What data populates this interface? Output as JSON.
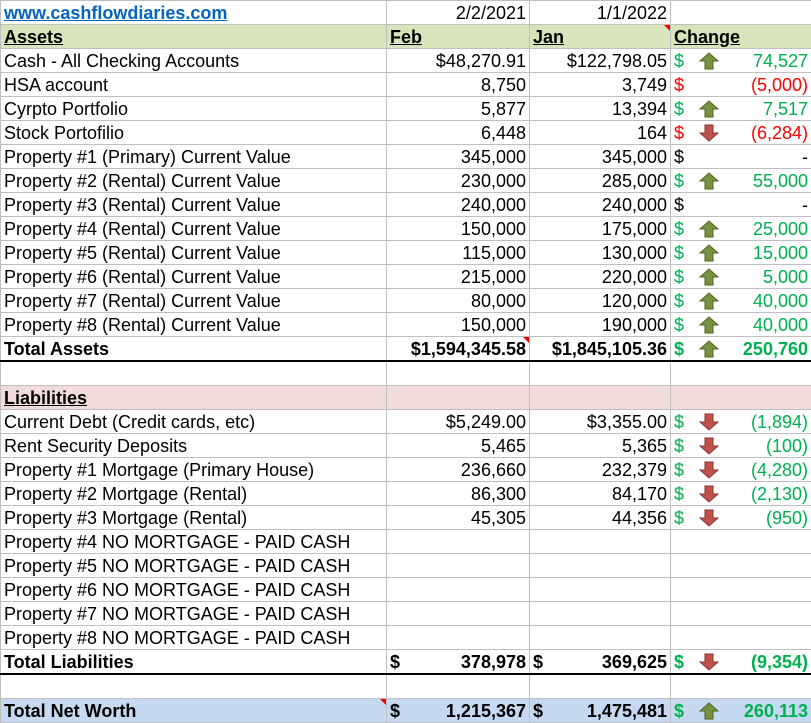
{
  "header": {
    "site": "www.cashflowdiaries.com",
    "date1": "2/2/2021",
    "date2": "1/1/2022"
  },
  "columns": {
    "label": "Assets",
    "c1": "Feb",
    "c2": "Jan",
    "c3": "Change"
  },
  "assets": [
    {
      "label": "Cash - All Checking Accounts",
      "v1": "$48,270.91",
      "v2": "$122,798.05",
      "cur": "$",
      "chg": "74,527",
      "dir": "up",
      "color": "green"
    },
    {
      "label": "HSA account",
      "v1": "8,750",
      "v2": "3,749",
      "cur": "$",
      "chg": "(5,000)",
      "dir": "",
      "color": "red"
    },
    {
      "label": "Cyrpto Portfolio",
      "v1": "5,877",
      "v2": "13,394",
      "cur": "$",
      "chg": "7,517",
      "dir": "up",
      "color": "green"
    },
    {
      "label": "Stock Portofilio",
      "v1": "6,448",
      "v2": "164",
      "cur": "$",
      "chg": "(6,284)",
      "dir": "down",
      "color": "red"
    },
    {
      "label": "Property #1 (Primary) Current Value",
      "v1": "345,000",
      "v2": "345,000",
      "cur": "$",
      "chg": "-",
      "dir": "",
      "color": "black"
    },
    {
      "label": "Property #2 (Rental) Current Value",
      "v1": "230,000",
      "v2": "285,000",
      "cur": "$",
      "chg": "55,000",
      "dir": "up",
      "color": "green"
    },
    {
      "label": "Property #3 (Rental)  Current Value",
      "v1": "240,000",
      "v2": "240,000",
      "cur": "$",
      "chg": "-",
      "dir": "",
      "color": "black"
    },
    {
      "label": "Property #4 (Rental) Current Value",
      "v1": "150,000",
      "v2": "175,000",
      "cur": "$",
      "chg": "25,000",
      "dir": "up",
      "color": "green"
    },
    {
      "label": "Property #5 (Rental) Current Value",
      "v1": "115,000",
      "v2": "130,000",
      "cur": "$",
      "chg": "15,000",
      "dir": "up",
      "color": "green"
    },
    {
      "label": "Property #6 (Rental) Current Value",
      "v1": "215,000",
      "v2": "220,000",
      "cur": "$",
      "chg": "5,000",
      "dir": "up",
      "color": "green"
    },
    {
      "label": "Property #7 (Rental) Current Value",
      "v1": "80,000",
      "v2": "120,000",
      "cur": "$",
      "chg": "40,000",
      "dir": "up",
      "color": "green"
    },
    {
      "label": "Property #8 (Rental) Current Value",
      "v1": "150,000",
      "v2": "190,000",
      "cur": "$",
      "chg": "40,000",
      "dir": "up",
      "color": "green"
    }
  ],
  "total_assets": {
    "label": "Total Assets",
    "v1": "$1,594,345.58",
    "v2": "$1,845,105.36",
    "cur": "$",
    "chg": "250,760"
  },
  "liabilities_title": "Liabilities",
  "liabilities": [
    {
      "label": "Current Debt (Credit cards, etc)",
      "v1": "$5,249.00",
      "v2": "$3,355.00",
      "cur": "$",
      "chg": "(1,894)",
      "dir": "down"
    },
    {
      "label": "Rent Security Deposits",
      "v1": "5,465",
      "v2": "5,365",
      "cur": "$",
      "chg": "(100)",
      "dir": "down"
    },
    {
      "label": "Property #1 Mortgage (Primary House)",
      "v1": "236,660",
      "v2": "232,379",
      "cur": "$",
      "chg": "(4,280)",
      "dir": "down"
    },
    {
      "label": "Property #2 Mortgage (Rental)",
      "v1": "86,300",
      "v2": "84,170",
      "cur": "$",
      "chg": "(2,130)",
      "dir": "down"
    },
    {
      "label": "Property #3 Mortgage (Rental)",
      "v1": "45,305",
      "v2": "44,356",
      "cur": "$",
      "chg": "(950)",
      "dir": "down"
    },
    {
      "label": "Property #4 NO MORTGAGE - PAID CASH"
    },
    {
      "label": "Property #5 NO MORTGAGE - PAID CASH"
    },
    {
      "label": "Property #6 NO MORTGAGE - PAID CASH"
    },
    {
      "label": "Property #7 NO MORTGAGE - PAID CASH"
    },
    {
      "label": "Property #8 NO MORTGAGE - PAID CASH"
    }
  ],
  "total_liabilities": {
    "label": "Total Liabilities",
    "cur1": "$",
    "v1": "378,978",
    "cur2": "$",
    "v2": "369,625",
    "cur": "$",
    "chg": "(9,354)"
  },
  "net_worth": {
    "label": "Total Net Worth",
    "cur1": "$",
    "v1": "1,215,367",
    "cur2": "$",
    "v2": "1,475,481",
    "cur": "$",
    "chg": "260,113"
  },
  "colors": {
    "green": "#00b050",
    "red": "#ff0000",
    "up_arrow": "#76923c",
    "down_arrow": "#c0504d",
    "header_bg": "#d8e4bc",
    "liab_bg": "#f2dcdb",
    "nw_bg": "#c5d9f1"
  }
}
